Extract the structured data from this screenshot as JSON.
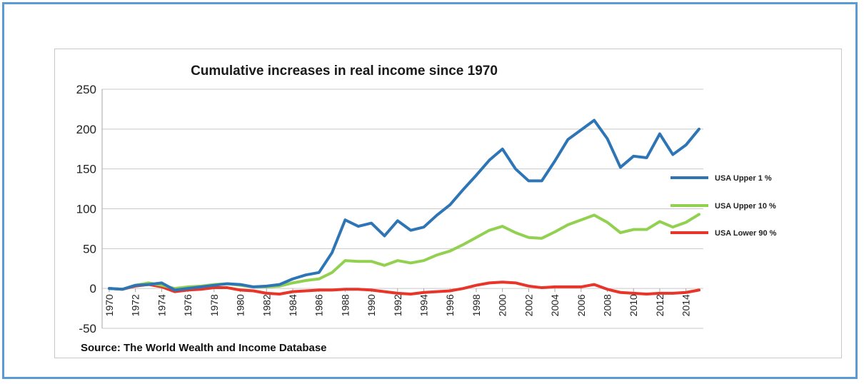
{
  "chart_data": {
    "type": "line",
    "title": "Cumulative increases in real income since 1970",
    "source": "Source: The World Wealth and Income Database",
    "ylim": [
      -50,
      250
    ],
    "yticks": [
      250,
      200,
      150,
      100,
      50,
      0,
      -50
    ],
    "xlim": [
      1970,
      2015
    ],
    "xtick_labels": [
      "1970",
      "1972",
      "1974",
      "1976",
      "1978",
      "1980",
      "1982",
      "1984",
      "1986",
      "1988",
      "1990",
      "1992",
      "1994",
      "1996",
      "1998",
      "2000",
      "2002",
      "2004",
      "2006",
      "2008",
      "2010",
      "2012",
      "2014"
    ],
    "grid": true,
    "legend_position": "right",
    "x": [
      1970,
      1971,
      1972,
      1973,
      1974,
      1975,
      1976,
      1977,
      1978,
      1979,
      1980,
      1981,
      1982,
      1983,
      1984,
      1985,
      1986,
      1987,
      1988,
      1989,
      1990,
      1991,
      1992,
      1993,
      1994,
      1995,
      1996,
      1997,
      1998,
      1999,
      2000,
      2001,
      2002,
      2003,
      2004,
      2005,
      2006,
      2007,
      2008,
      2009,
      2010,
      2011,
      2012,
      2013,
      2014,
      2015
    ],
    "series": [
      {
        "name": "USA Upper 1 %",
        "color": "#2e75b6",
        "values": [
          0,
          -1,
          4,
          5,
          7,
          -2,
          0,
          2,
          4,
          6,
          5,
          2,
          3,
          5,
          12,
          17,
          20,
          45,
          86,
          78,
          82,
          66,
          85,
          73,
          77,
          92,
          105,
          124,
          142,
          161,
          175,
          150,
          135,
          135,
          160,
          187,
          199,
          211,
          188,
          152,
          166,
          164,
          194,
          168,
          180,
          200
        ]
      },
      {
        "name": "USA Upper 10 %",
        "color": "#92d050",
        "values": [
          0,
          -1,
          4,
          7,
          4,
          0,
          2,
          3,
          5,
          6,
          4,
          2,
          2,
          3,
          7,
          10,
          12,
          20,
          35,
          34,
          34,
          29,
          35,
          32,
          35,
          42,
          47,
          55,
          64,
          73,
          78,
          70,
          64,
          63,
          71,
          80,
          86,
          92,
          83,
          70,
          74,
          74,
          84,
          77,
          83,
          93
        ]
      },
      {
        "name": "USA Lower 90 %",
        "color": "#e8352a",
        "values": [
          0,
          -1,
          3,
          5,
          2,
          -4,
          -2,
          -1,
          1,
          1,
          -2,
          -3,
          -6,
          -7,
          -4,
          -3,
          -2,
          -2,
          -1,
          -1,
          -2,
          -4,
          -6,
          -7,
          -5,
          -4,
          -3,
          0,
          4,
          7,
          8,
          7,
          3,
          1,
          2,
          2,
          2,
          5,
          -1,
          -5,
          -6,
          -7,
          -6,
          -6,
          -5,
          -2
        ]
      }
    ]
  }
}
